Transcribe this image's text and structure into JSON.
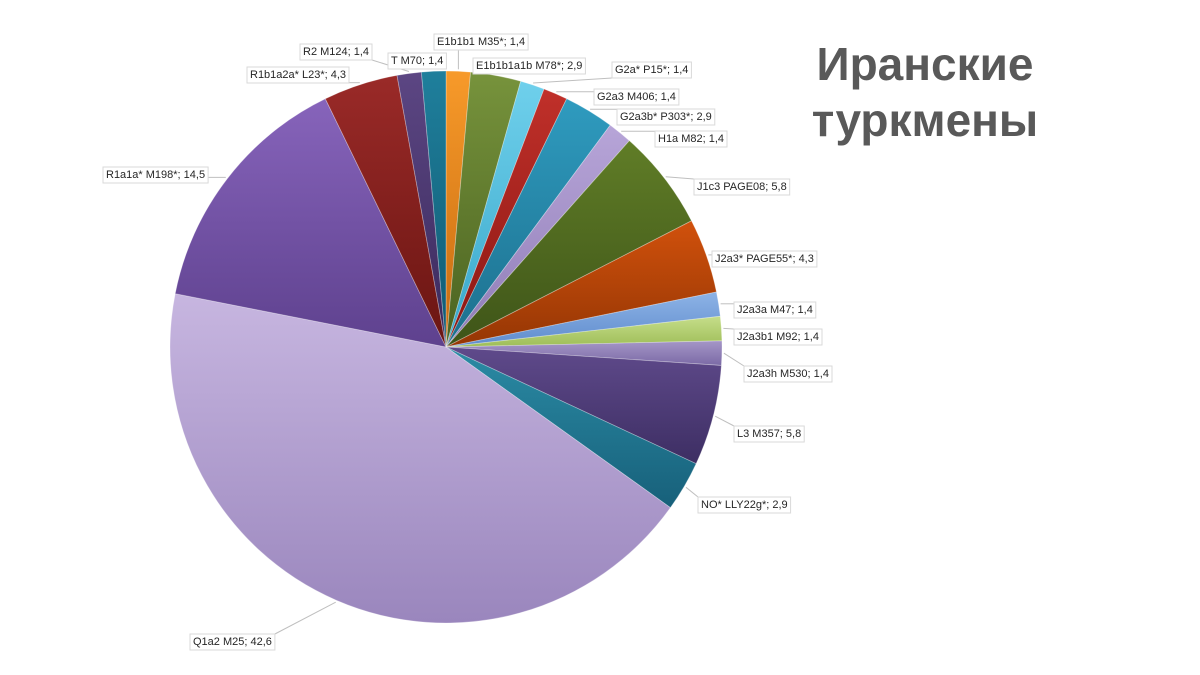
{
  "title": {
    "line1": "Иранские",
    "line2": "туркмены"
  },
  "chart_data": {
    "type": "pie",
    "title": "Иранские туркмены",
    "slices": [
      {
        "label": "E1b1b1 M35*",
        "value": 1.4,
        "text": "E1b1b1 M35*; 1,4",
        "color": "#f79a2a",
        "shade": "#c66a10"
      },
      {
        "label": "E1b1b1a1b M78*",
        "value": 2.9,
        "text": "E1b1b1a1b M78*; 2,9",
        "color": "#77933c",
        "shade": "#4a6220"
      },
      {
        "label": "G2a* P15*",
        "value": 1.4,
        "text": "G2a* P15*; 1,4",
        "color": "#6fd0ec",
        "shade": "#38a6c8"
      },
      {
        "label": "G2a3 M406",
        "value": 1.4,
        "text": "G2a3 M406; 1,4",
        "color": "#c0302a",
        "shade": "#8a1712"
      },
      {
        "label": "G2a3b* P303*",
        "value": 2.9,
        "text": "G2a3b* P303*; 2,9",
        "color": "#2f9bbf",
        "shade": "#1c6f8d"
      },
      {
        "label": "H1a M82",
        "value": 1.4,
        "text": "H1a M82; 1,4",
        "color": "#b7a5d8",
        "shade": "#8f7cb6"
      },
      {
        "label": "J1c3 PAGE08",
        "value": 5.8,
        "text": "J1c3 PAGE08; 5,8",
        "color": "#607d27",
        "shade": "#3e5418"
      },
      {
        "label": "J2a3* PAGE55*",
        "value": 4.3,
        "text": "J2a3* PAGE55*; 4,3",
        "color": "#d1510c",
        "shade": "#953604"
      },
      {
        "label": "J2a3a M47",
        "value": 1.4,
        "text": "J2a3a M47; 1,4",
        "color": "#8db3e6",
        "shade": "#5f8ccd"
      },
      {
        "label": "J2a3b1 M92",
        "value": 1.4,
        "text": "J2a3b1 M92; 1,4",
        "color": "#c6de8a",
        "shade": "#9ebd58"
      },
      {
        "label": "J2a3h M530",
        "value": 1.4,
        "text": "J2a3h M530; 1,4",
        "color": "#a596c7",
        "shade": "#7b6aa6"
      },
      {
        "label": "L3 M357",
        "value": 5.8,
        "text": "L3 M357; 5,8",
        "color": "#5f4a8b",
        "shade": "#3d2e63"
      },
      {
        "label": "NO* LLY22g*",
        "value": 2.9,
        "text": "NO* LLY22g*; 2,9",
        "color": "#2b8ba5",
        "shade": "#17607a"
      },
      {
        "label": "Q1a2 M25",
        "value": 42.6,
        "text": "Q1a2 M25; 42,6",
        "color": "#c7b6e0",
        "shade": "#9a86bd"
      },
      {
        "label": "R1a1a* M198*",
        "value": 14.5,
        "text": "R1a1a* M198*; 14,5",
        "color": "#8764bb",
        "shade": "#5e418e"
      },
      {
        "label": "R1b1a2a* L23*",
        "value": 4.3,
        "text": "R1b1a2a* L23*; 4,3",
        "color": "#9a2a28",
        "shade": "#6a1512"
      },
      {
        "label": "R2 M124",
        "value": 1.4,
        "text": "R2 M124; 1,4",
        "color": "#5c4683",
        "shade": "#3a2a5c"
      },
      {
        "label": "T M70",
        "value": 1.4,
        "text": "T M70; 1,4",
        "color": "#1f7f9c",
        "shade": "#115a72"
      }
    ]
  }
}
